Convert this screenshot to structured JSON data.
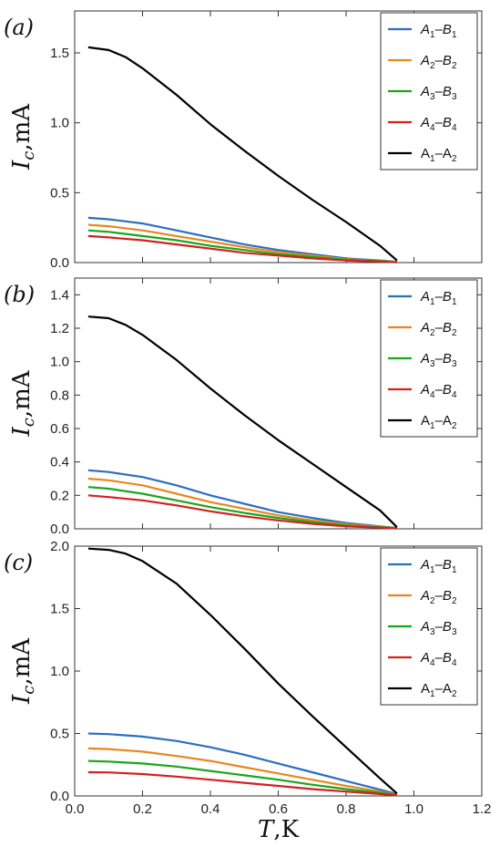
{
  "chart_data": [
    {
      "type": "line",
      "panel_label": "(a)",
      "ylabel": "I_c,mA",
      "xlabel": "",
      "xlim": [
        0.0,
        1.2
      ],
      "ylim": [
        0.0,
        1.8
      ],
      "y_ticks": [
        "0.0",
        "0.5",
        "1.0",
        "1.5"
      ],
      "y_tick_values": [
        0.0,
        0.5,
        1.0,
        1.5
      ],
      "legend_position": "top-right",
      "series": [
        {
          "name": "A1-B1",
          "color": "#2b6fbf",
          "x": [
            0.04,
            0.1,
            0.2,
            0.3,
            0.4,
            0.5,
            0.6,
            0.7,
            0.8,
            0.9,
            0.95
          ],
          "y": [
            0.32,
            0.31,
            0.28,
            0.23,
            0.18,
            0.13,
            0.09,
            0.06,
            0.03,
            0.015,
            0.005
          ]
        },
        {
          "name": "A2-B2",
          "color": "#e8871e",
          "x": [
            0.04,
            0.1,
            0.2,
            0.3,
            0.4,
            0.5,
            0.6,
            0.7,
            0.8,
            0.9,
            0.95
          ],
          "y": [
            0.27,
            0.26,
            0.23,
            0.19,
            0.15,
            0.11,
            0.075,
            0.05,
            0.025,
            0.012,
            0.004
          ]
        },
        {
          "name": "A3-B3",
          "color": "#1aa61a",
          "x": [
            0.04,
            0.1,
            0.2,
            0.3,
            0.4,
            0.5,
            0.6,
            0.7,
            0.8,
            0.9,
            0.95
          ],
          "y": [
            0.23,
            0.22,
            0.19,
            0.16,
            0.12,
            0.09,
            0.06,
            0.04,
            0.02,
            0.01,
            0.003
          ]
        },
        {
          "name": "A4-B4",
          "color": "#d42020",
          "x": [
            0.04,
            0.1,
            0.2,
            0.3,
            0.4,
            0.5,
            0.6,
            0.7,
            0.8,
            0.9,
            0.95
          ],
          "y": [
            0.19,
            0.18,
            0.16,
            0.13,
            0.1,
            0.07,
            0.05,
            0.03,
            0.015,
            0.007,
            0.002
          ]
        },
        {
          "name": "A1-A2",
          "color": "#000000",
          "x": [
            0.04,
            0.1,
            0.15,
            0.2,
            0.3,
            0.4,
            0.5,
            0.6,
            0.7,
            0.8,
            0.9,
            0.95
          ],
          "y": [
            1.54,
            1.52,
            1.47,
            1.39,
            1.2,
            0.99,
            0.8,
            0.62,
            0.45,
            0.29,
            0.12,
            0.015
          ]
        }
      ]
    },
    {
      "type": "line",
      "panel_label": "(b)",
      "ylabel": "I_c,mA",
      "xlabel": "",
      "xlim": [
        0.0,
        1.2
      ],
      "ylim": [
        0.0,
        1.5
      ],
      "y_ticks": [
        "0.0",
        "0.2",
        "0.4",
        "0.6",
        "0.8",
        "1.0",
        "1.2",
        "1.4"
      ],
      "y_tick_values": [
        0.0,
        0.2,
        0.4,
        0.6,
        0.8,
        1.0,
        1.2,
        1.4
      ],
      "legend_position": "top-right",
      "series": [
        {
          "name": "A1-B1",
          "color": "#2b6fbf",
          "x": [
            0.04,
            0.1,
            0.2,
            0.3,
            0.4,
            0.5,
            0.6,
            0.7,
            0.8,
            0.9,
            0.95
          ],
          "y": [
            0.35,
            0.34,
            0.31,
            0.26,
            0.2,
            0.15,
            0.1,
            0.065,
            0.035,
            0.015,
            0.005
          ]
        },
        {
          "name": "A2-B2",
          "color": "#e8871e",
          "x": [
            0.04,
            0.1,
            0.2,
            0.3,
            0.4,
            0.5,
            0.6,
            0.7,
            0.8,
            0.9,
            0.95
          ],
          "y": [
            0.3,
            0.29,
            0.26,
            0.21,
            0.16,
            0.12,
            0.08,
            0.05,
            0.027,
            0.012,
            0.004
          ]
        },
        {
          "name": "A3-B3",
          "color": "#1aa61a",
          "x": [
            0.04,
            0.1,
            0.2,
            0.3,
            0.4,
            0.5,
            0.6,
            0.7,
            0.8,
            0.9,
            0.95
          ],
          "y": [
            0.25,
            0.24,
            0.21,
            0.17,
            0.13,
            0.095,
            0.065,
            0.04,
            0.02,
            0.009,
            0.003
          ]
        },
        {
          "name": "A4-B4",
          "color": "#d42020",
          "x": [
            0.04,
            0.1,
            0.2,
            0.3,
            0.4,
            0.5,
            0.6,
            0.7,
            0.8,
            0.9,
            0.95
          ],
          "y": [
            0.2,
            0.19,
            0.17,
            0.14,
            0.105,
            0.075,
            0.05,
            0.03,
            0.015,
            0.007,
            0.002
          ]
        },
        {
          "name": "A1-A2",
          "color": "#000000",
          "x": [
            0.04,
            0.1,
            0.15,
            0.2,
            0.3,
            0.4,
            0.5,
            0.6,
            0.7,
            0.8,
            0.9,
            0.95
          ],
          "y": [
            1.27,
            1.26,
            1.22,
            1.16,
            1.01,
            0.84,
            0.68,
            0.53,
            0.39,
            0.25,
            0.11,
            0.01
          ]
        }
      ]
    },
    {
      "type": "line",
      "panel_label": "(c)",
      "ylabel": "I_c,mA",
      "xlabel": "T,K",
      "xlim": [
        0.0,
        1.2
      ],
      "ylim": [
        0.0,
        2.0
      ],
      "x_ticks": [
        "0.0",
        "0.2",
        "0.4",
        "0.6",
        "0.8",
        "1.0",
        "1.2"
      ],
      "x_tick_values": [
        0.0,
        0.2,
        0.4,
        0.6,
        0.8,
        1.0,
        1.2
      ],
      "y_ticks": [
        "0.0",
        "0.5",
        "1.0",
        "1.5",
        "2.0"
      ],
      "y_tick_values": [
        0.0,
        0.5,
        1.0,
        1.5,
        2.0
      ],
      "legend_position": "top-right",
      "series": [
        {
          "name": "A1-B1",
          "color": "#2b6fbf",
          "x": [
            0.04,
            0.1,
            0.2,
            0.3,
            0.4,
            0.5,
            0.6,
            0.7,
            0.8,
            0.9,
            0.95
          ],
          "y": [
            0.5,
            0.495,
            0.475,
            0.44,
            0.39,
            0.33,
            0.26,
            0.19,
            0.12,
            0.05,
            0.015
          ]
        },
        {
          "name": "A2-B2",
          "color": "#e8871e",
          "x": [
            0.04,
            0.1,
            0.2,
            0.3,
            0.4,
            0.5,
            0.6,
            0.7,
            0.8,
            0.9,
            0.95
          ],
          "y": [
            0.38,
            0.375,
            0.355,
            0.32,
            0.28,
            0.23,
            0.18,
            0.13,
            0.08,
            0.035,
            0.01
          ]
        },
        {
          "name": "A3-B3",
          "color": "#1aa61a",
          "x": [
            0.04,
            0.1,
            0.2,
            0.3,
            0.4,
            0.5,
            0.6,
            0.7,
            0.8,
            0.9,
            0.95
          ],
          "y": [
            0.28,
            0.275,
            0.26,
            0.235,
            0.2,
            0.165,
            0.13,
            0.09,
            0.055,
            0.025,
            0.008
          ]
        },
        {
          "name": "A4-B4",
          "color": "#d42020",
          "x": [
            0.04,
            0.1,
            0.2,
            0.3,
            0.4,
            0.5,
            0.6,
            0.7,
            0.8,
            0.9,
            0.95
          ],
          "y": [
            0.19,
            0.188,
            0.175,
            0.155,
            0.13,
            0.105,
            0.08,
            0.055,
            0.035,
            0.015,
            0.005
          ]
        },
        {
          "name": "A1-A2",
          "color": "#000000",
          "x": [
            0.04,
            0.1,
            0.15,
            0.2,
            0.3,
            0.4,
            0.5,
            0.6,
            0.7,
            0.8,
            0.9,
            0.95
          ],
          "y": [
            1.98,
            1.97,
            1.94,
            1.88,
            1.7,
            1.45,
            1.18,
            0.9,
            0.64,
            0.39,
            0.14,
            0.02
          ]
        }
      ]
    }
  ]
}
